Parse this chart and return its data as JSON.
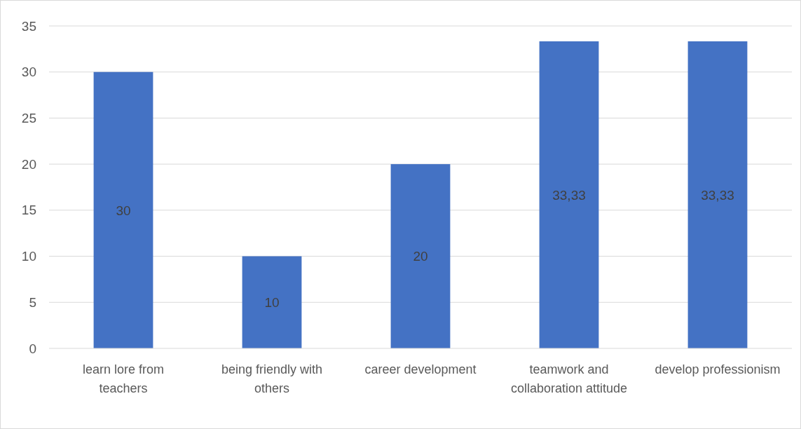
{
  "chart_data": {
    "type": "bar",
    "categories": [
      "learn lore from teachers",
      "being friendly with others",
      "career development",
      "teamwork and collaboration attitude",
      "develop professionism"
    ],
    "values": [
      30,
      10,
      20,
      33.33,
      33.33
    ],
    "value_labels": [
      "30",
      "10",
      "20",
      "33,33",
      "33,33"
    ],
    "color": "#4472c4",
    "ylim": [
      0,
      35
    ],
    "yticks": [
      0,
      5,
      10,
      15,
      20,
      25,
      30,
      35
    ],
    "grid": "y"
  }
}
